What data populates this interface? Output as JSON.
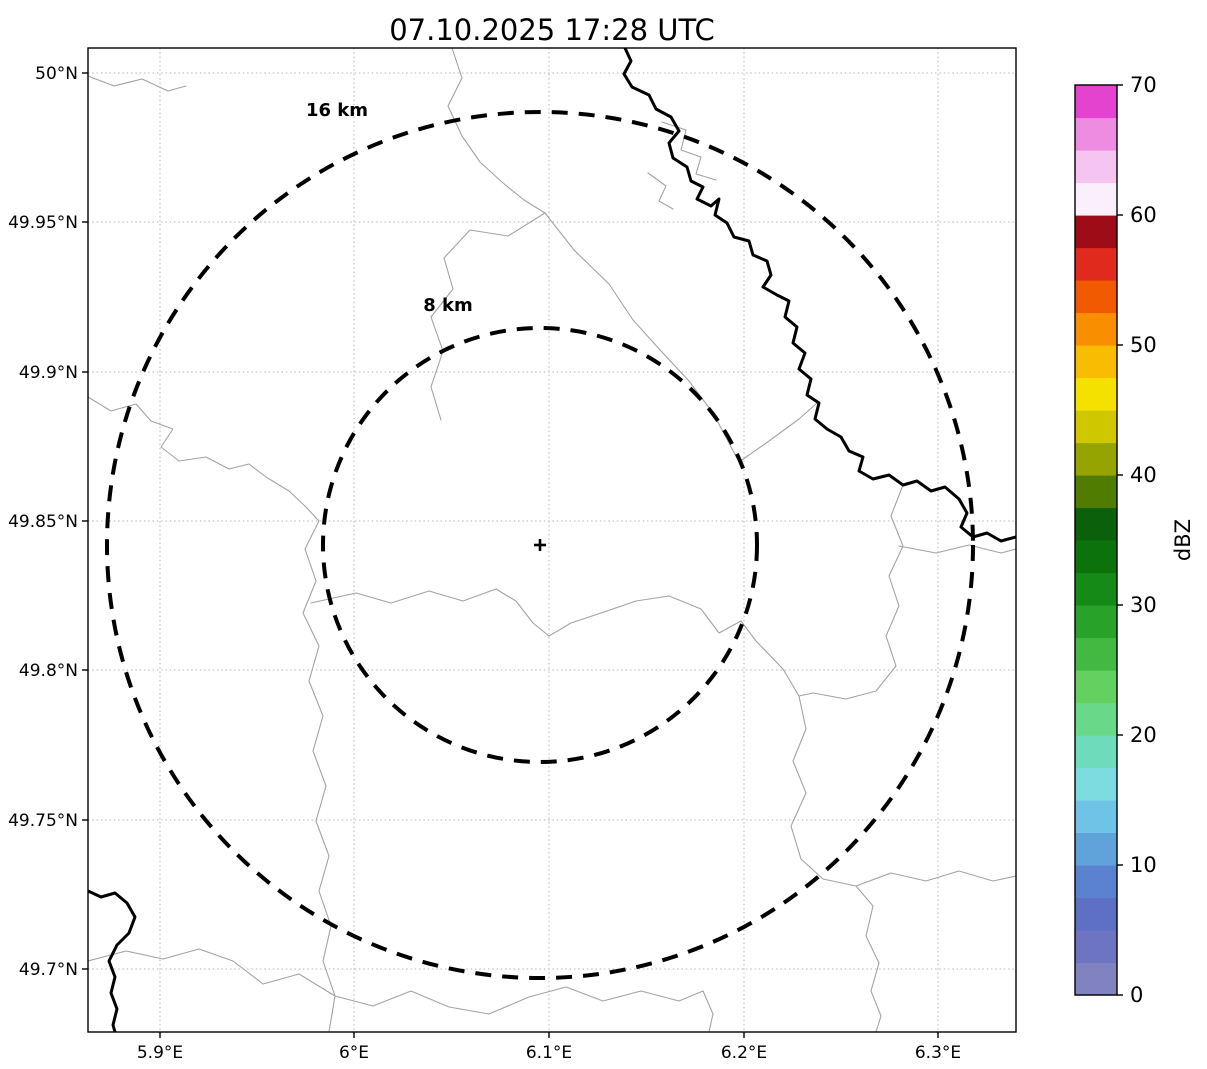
{
  "title": "07.10.2025 17:28 UTC",
  "map": {
    "y_tick_labels": [
      "50°N",
      "49.95°N",
      "49.9°N",
      "49.85°N",
      "49.8°N",
      "49.75°N",
      "49.7°N"
    ],
    "x_tick_labels": [
      "5.9°E",
      "6°E",
      "6.1°E",
      "6.2°E",
      "6.3°E"
    ],
    "range_rings": [
      {
        "label": "16 km",
        "radius_km": 16
      },
      {
        "label": "8 km",
        "radius_km": 8
      }
    ],
    "center_marker": "+"
  },
  "colorbar": {
    "label": "dBZ",
    "tick_labels": [
      "0",
      "10",
      "20",
      "30",
      "40",
      "50",
      "60",
      "70"
    ],
    "min": 0,
    "max": 70,
    "colors_bottom_to_top": [
      "#8083c0",
      "#6d74c2",
      "#5d70c5",
      "#5a82ce",
      "#60a3da",
      "#6fc3e6",
      "#7cdce0",
      "#6edcba",
      "#68d988",
      "#64d060",
      "#42ba42",
      "#28a228",
      "#168a16",
      "#0c730c",
      "#0b600b",
      "#507c02",
      "#96a400",
      "#cfc800",
      "#f4e100",
      "#f9bd00",
      "#f98e00",
      "#f15a00",
      "#df2a1d",
      "#9e0c17",
      "#fbeffb",
      "#f6c4f0",
      "#ee8ce2",
      "#e443d0"
    ]
  },
  "chart_data": {
    "type": "heatmap",
    "title": "07.10.2025 17:28 UTC",
    "description": "Weather radar reflectivity display (dBZ) over a topographic base map; no precipitation echoes are visible in the scene",
    "x_axis": {
      "label": "",
      "tick_labels": [
        "5.9°E",
        "6°E",
        "6.1°E",
        "6.2°E",
        "6.3°E"
      ],
      "tick_values_deg_E": [
        5.9,
        6.0,
        6.1,
        6.2,
        6.3
      ],
      "range_deg_E": [
        5.863,
        6.34
      ]
    },
    "y_axis": {
      "label": "",
      "tick_labels": [
        "50°N",
        "49.95°N",
        "49.9°N",
        "49.85°N",
        "49.8°N",
        "49.75°N",
        "49.7°N"
      ],
      "tick_values_deg_N": [
        50.0,
        49.95,
        49.9,
        49.85,
        49.8,
        49.75,
        49.7
      ],
      "range_deg_N": [
        49.679,
        50.008
      ]
    },
    "colorbar": {
      "label": "dBZ",
      "min": 0,
      "max": 70,
      "ticks": [
        0,
        10,
        20,
        30,
        40,
        50,
        60,
        70
      ]
    },
    "radar_center": {
      "lon_deg_E": 6.1,
      "lat_deg_N": 49.843,
      "marker": "+"
    },
    "range_rings_km": [
      8,
      16
    ],
    "grid": "dotted gridlines at every tick",
    "legend_position": "right colorbar",
    "overlays": [
      "thin gray administrative boundary lines",
      "thick black river / national border line"
    ],
    "values": []
  }
}
